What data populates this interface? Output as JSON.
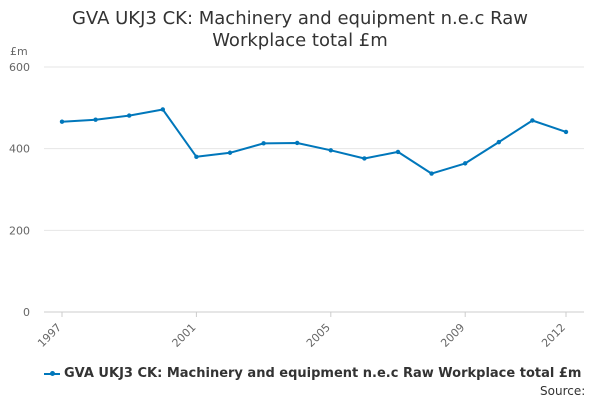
{
  "title_lines": [
    "GVA UKJ3 CK: Machinery and equipment n.e.c Raw",
    "Workplace total £m"
  ],
  "unit_label": "£m",
  "source_label": "Source:",
  "colors": {
    "series": "#0077bb",
    "grid": "#e6e6e6",
    "axis": "#cccccc",
    "text": "#666666"
  },
  "chart_data": {
    "type": "line",
    "title": "GVA UKJ3 CK: Machinery and equipment n.e.c Raw Workplace total £m",
    "ylabel": "£m",
    "xlabel": "",
    "ylim": [
      0,
      600
    ],
    "xlim": [
      1997,
      2012
    ],
    "y_ticks": [
      0,
      200,
      400,
      600
    ],
    "x_ticks": [
      1997,
      2001,
      2005,
      2009,
      2012
    ],
    "grid": true,
    "legend": "bottom",
    "series": [
      {
        "name": "GVA UKJ3 CK: Machinery and equipment n.e.c Raw Workplace total £m",
        "x": [
          1997,
          1998,
          1999,
          2000,
          2001,
          2002,
          2003,
          2004,
          2005,
          2006,
          2007,
          2008,
          2009,
          2010,
          2011,
          2012
        ],
        "values": [
          466,
          471,
          481,
          496,
          380,
          390,
          413,
          414,
          396,
          376,
          392,
          339,
          364,
          416,
          469,
          441
        ]
      }
    ]
  }
}
